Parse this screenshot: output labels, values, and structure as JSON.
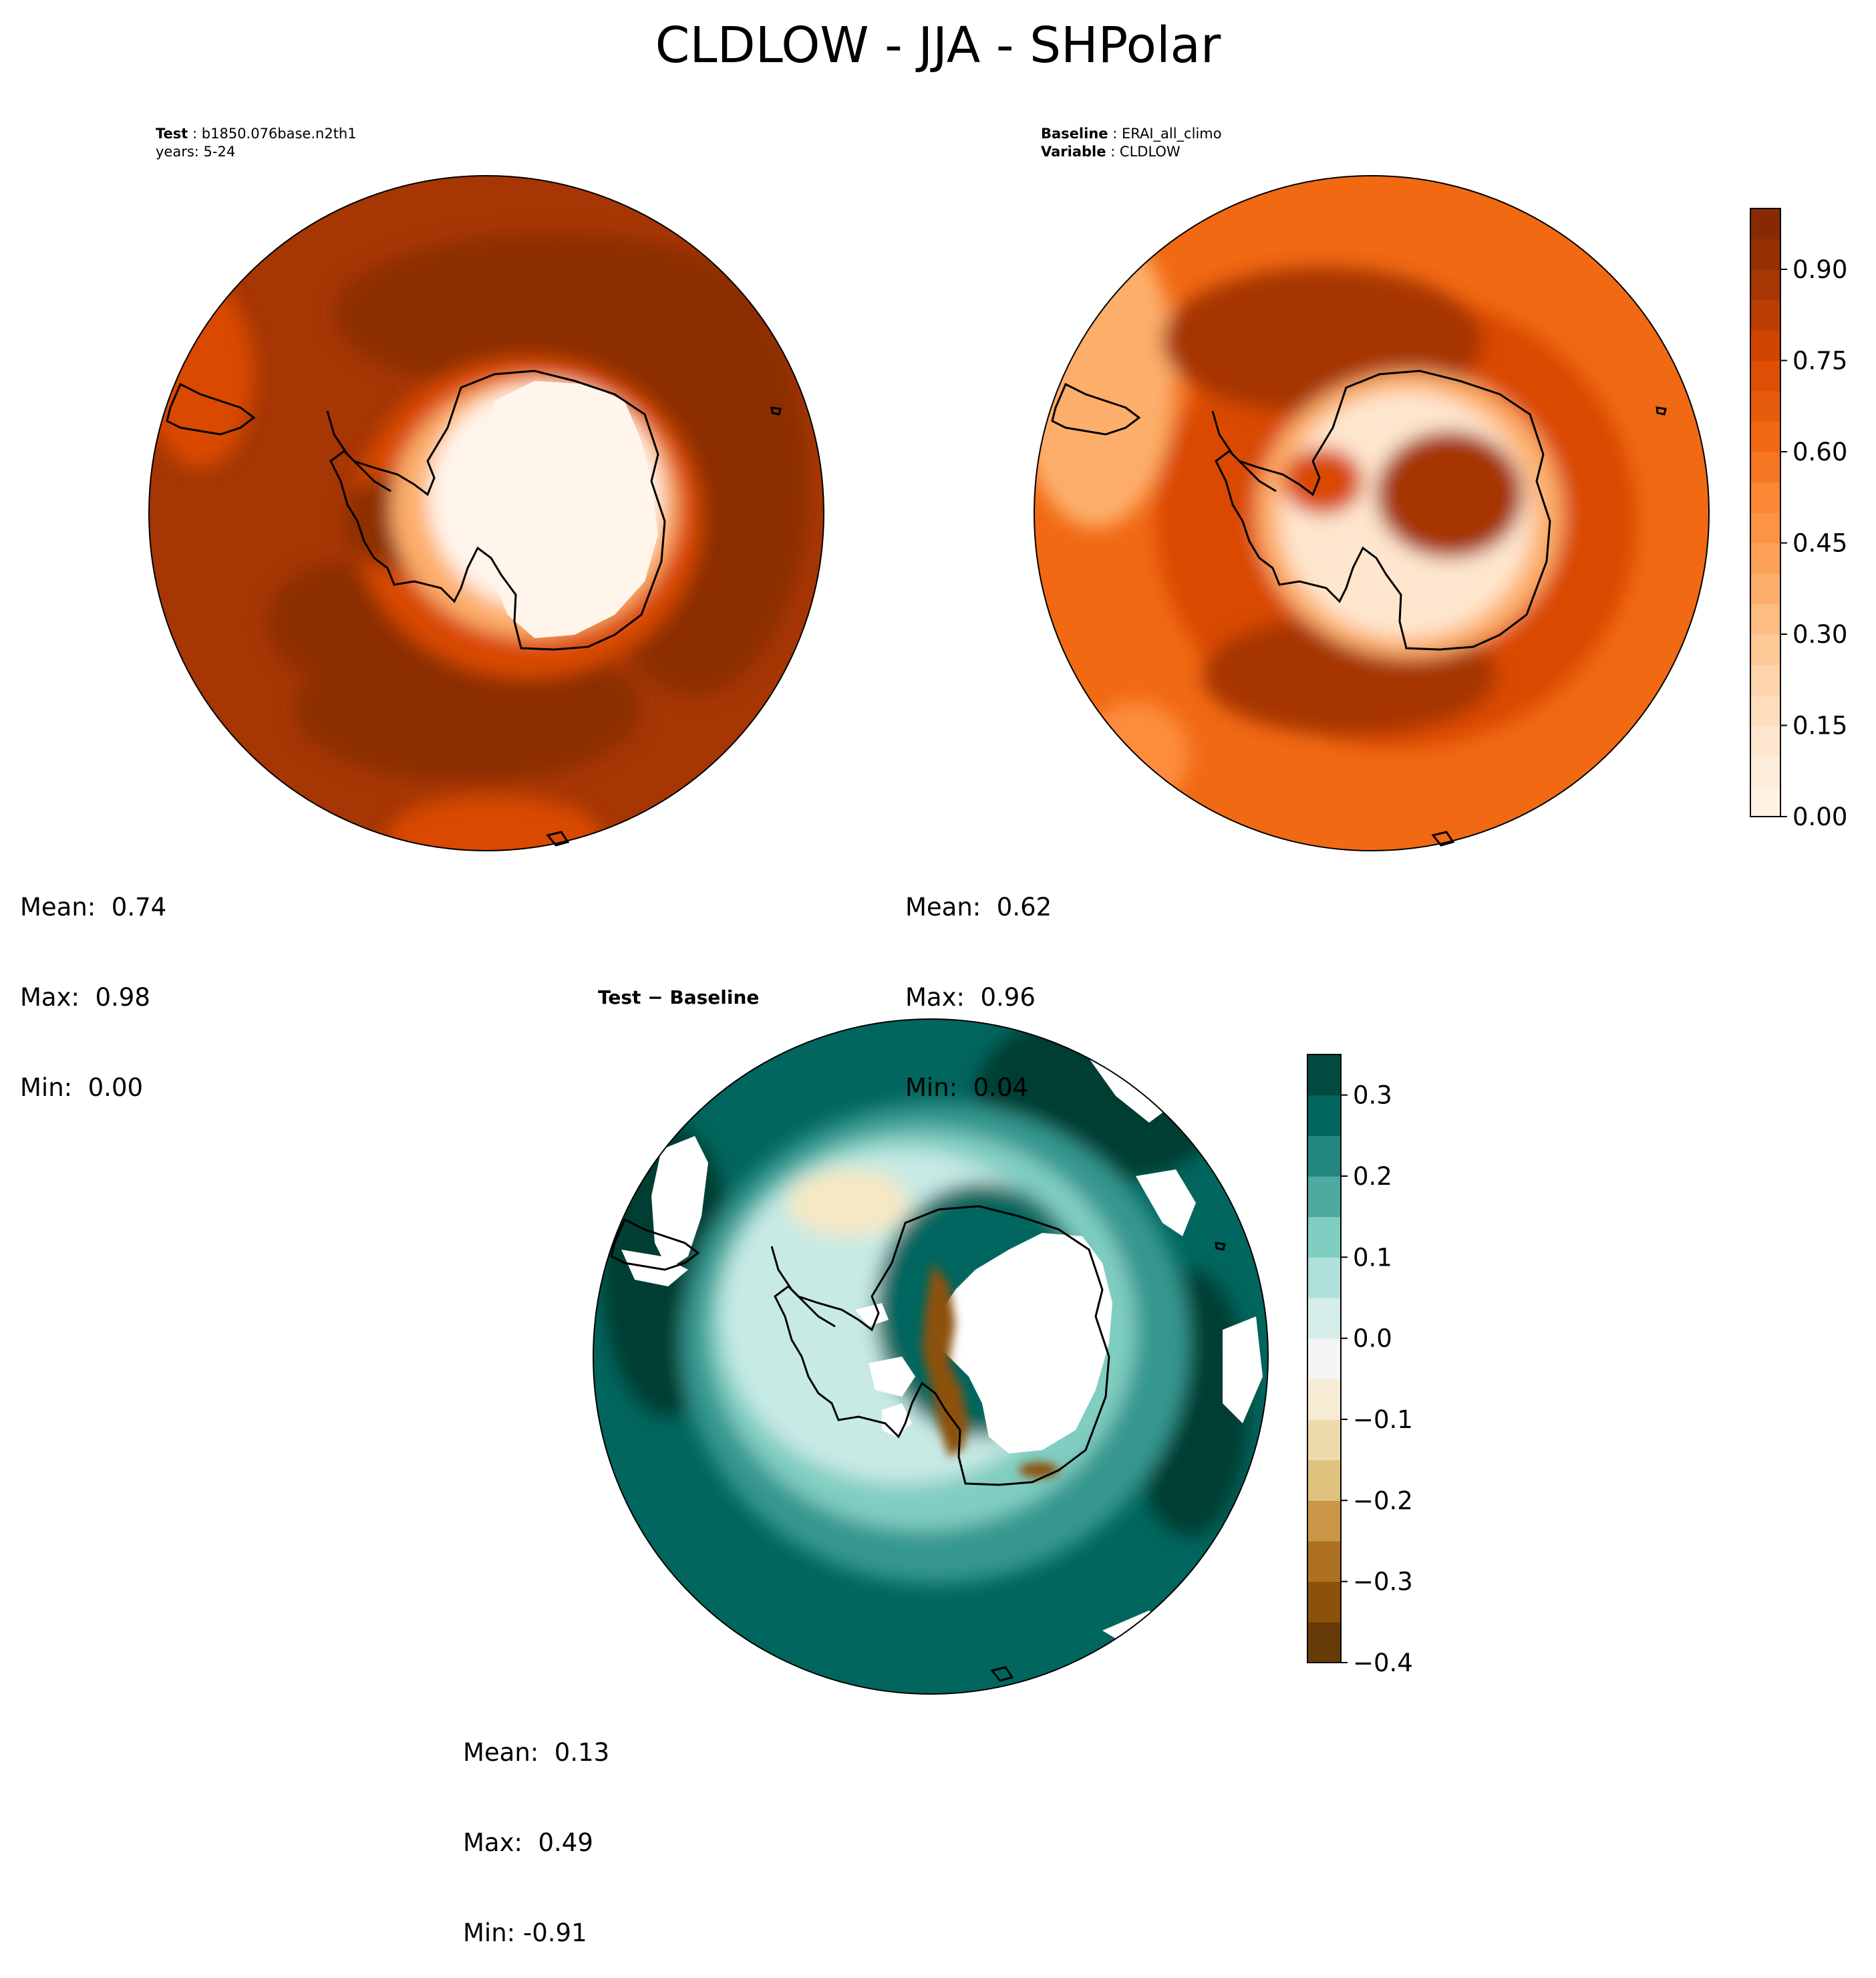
{
  "figure": {
    "title": "CLDLOW - JJA - SHPolar"
  },
  "panels": {
    "test": {
      "label_key": "Test",
      "label_value": "b1850.076base.n2th1",
      "years_line": "years: 5-24",
      "stats": {
        "mean": "Mean:  0.74",
        "max": "Max:  0.98",
        "min": "Min:  0.00"
      }
    },
    "baseline": {
      "label_key": "Baseline",
      "label_value": "ERAI_all_climo",
      "variable_key": "Variable",
      "variable_value": "CLDLOW",
      "stats": {
        "mean": "Mean:  0.62",
        "max": "Max:  0.96",
        "min": "Min:  0.04"
      }
    },
    "diff": {
      "label": "Test − Baseline",
      "stats": {
        "mean": "Mean:  0.13",
        "max": "Max:  0.49",
        "min": "Min: -0.91"
      }
    }
  },
  "colors": {
    "orange_scale": [
      "#fff5eb",
      "#fee6ce",
      "#fdd0a2",
      "#fdae6b",
      "#fd8d3c",
      "#f16913",
      "#d94801",
      "#a63603",
      "#7f2704"
    ],
    "diverging_scale": [
      "#543005",
      "#8c510a",
      "#bf812d",
      "#dfc27d",
      "#f6e8c3",
      "#f5f5f5",
      "#c7eae5",
      "#80cdc1",
      "#35978f",
      "#01665e",
      "#003c30"
    ],
    "coast": "#000000"
  },
  "chart_data": [
    {
      "type": "heatmap",
      "name": "Test",
      "projection": "south polar stereographic",
      "variable": "CLDLOW",
      "season": "JJA",
      "mean": 0.74,
      "max": 0.98,
      "min": 0.0,
      "colorbar": {
        "range": [
          0.0,
          1.0
        ],
        "ticks": [
          "0.00",
          "0.15",
          "0.30",
          "0.45",
          "0.60",
          "0.75",
          "0.90"
        ],
        "cmap": "Oranges",
        "levels": 20
      }
    },
    {
      "type": "heatmap",
      "name": "Baseline",
      "projection": "south polar stereographic",
      "variable": "CLDLOW",
      "season": "JJA",
      "mean": 0.62,
      "max": 0.96,
      "min": 0.04,
      "colorbar": {
        "range": [
          0.0,
          1.0
        ],
        "ticks": [
          "0.00",
          "0.15",
          "0.30",
          "0.45",
          "0.60",
          "0.75",
          "0.90"
        ],
        "cmap": "Oranges",
        "levels": 20
      }
    },
    {
      "type": "heatmap",
      "name": "Test - Baseline",
      "projection": "south polar stereographic",
      "mean": 0.13,
      "max": 0.49,
      "min": -0.91,
      "colorbar": {
        "range": [
          -0.4,
          0.35
        ],
        "ticks": [
          "−0.4",
          "−0.3",
          "−0.2",
          "−0.1",
          "0.0",
          "0.1",
          "0.2",
          "0.3"
        ],
        "tick_values": [
          -0.4,
          -0.3,
          -0.2,
          -0.1,
          0.0,
          0.1,
          0.2,
          0.3
        ],
        "cmap": "BrBG",
        "levels": 15
      }
    }
  ]
}
